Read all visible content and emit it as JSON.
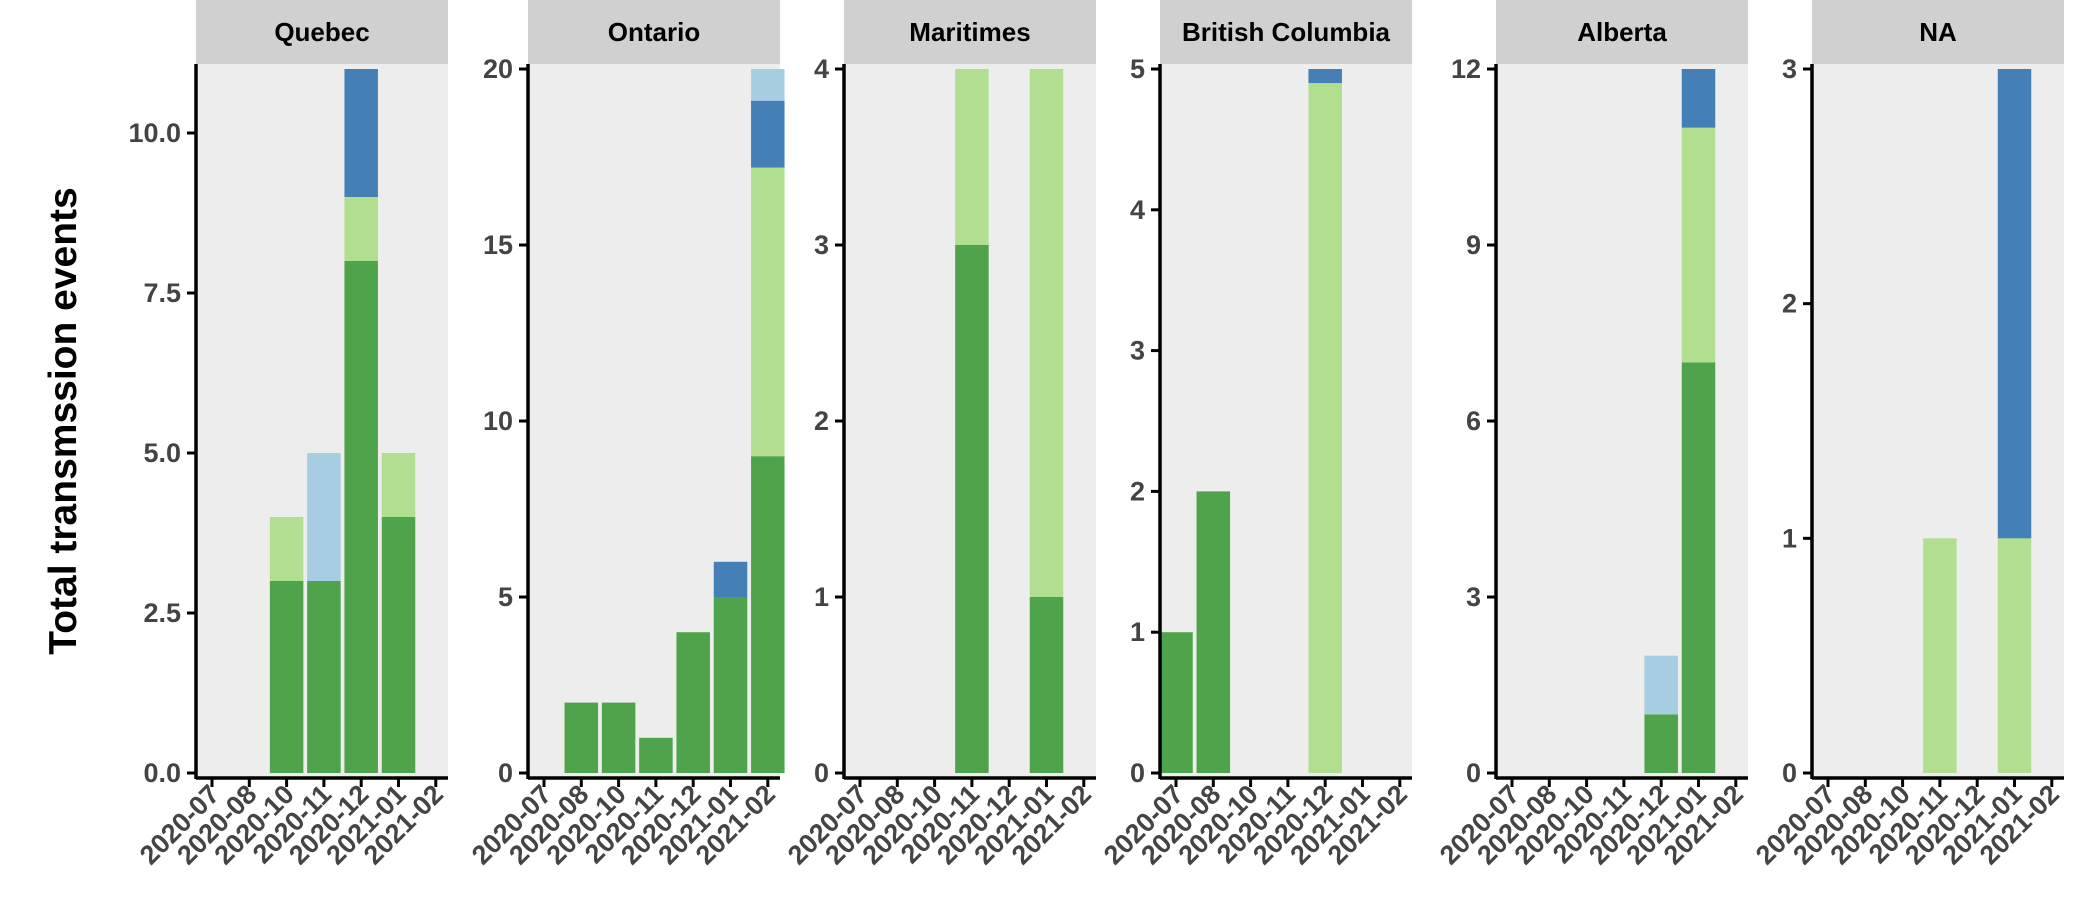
{
  "y_axis_title": "Total transmssion events",
  "colors": {
    "panel_bg": "#ededed",
    "strip_bg": "#d0d0d0",
    "axis": "#000000",
    "tick_text": "#444444",
    "title_text": "#000000"
  },
  "chart_data": [
    {
      "type": "bar",
      "facet": "Quebec",
      "x_tick_labels": [
        "2020-07",
        "2020-08",
        "2020-10",
        "2020-11",
        "2020-12",
        "2021-01",
        "2021-02"
      ],
      "y_tick_labels": [
        "0.0",
        "2.5",
        "5.0",
        "7.5",
        "10.0"
      ],
      "y_ticks": [
        0,
        2.5,
        5,
        7.5,
        10
      ],
      "ylim": [
        0,
        11
      ],
      "bars": [
        {
          "category": "2020-10",
          "segments": [
            {
              "value": 3,
              "color": "#4fa34b"
            },
            {
              "value": 1,
              "color": "#b1df8f"
            }
          ]
        },
        {
          "category": "2020-11",
          "segments": [
            {
              "value": 3,
              "color": "#4fa34b"
            },
            {
              "value": 2,
              "color": "#a7cde3"
            }
          ]
        },
        {
          "category": "2020-12",
          "segments": [
            {
              "value": 8,
              "color": "#4fa34b"
            },
            {
              "value": 1,
              "color": "#b1df8f"
            },
            {
              "value": 2,
              "color": "#4480b6"
            }
          ]
        },
        {
          "category": "2021-01",
          "segments": [
            {
              "value": 4,
              "color": "#4fa34b"
            },
            {
              "value": 1,
              "color": "#b1df8f"
            }
          ]
        }
      ]
    },
    {
      "type": "bar",
      "facet": "Ontario",
      "x_tick_labels": [
        "2020-07",
        "2020-08",
        "2020-10",
        "2020-11",
        "2020-12",
        "2021-01",
        "2021-02"
      ],
      "y_tick_labels": [
        "0",
        "5",
        "10",
        "15",
        "20"
      ],
      "y_ticks": [
        0,
        5,
        10,
        15,
        20
      ],
      "ylim": [
        0,
        20
      ],
      "bars": [
        {
          "category": "2020-08",
          "segments": [
            {
              "value": 2,
              "color": "#4fa34b"
            }
          ]
        },
        {
          "category": "2020-10",
          "segments": [
            {
              "value": 2,
              "color": "#4fa34b"
            }
          ]
        },
        {
          "category": "2020-11",
          "segments": [
            {
              "value": 1,
              "color": "#4fa34b"
            }
          ]
        },
        {
          "category": "2020-12",
          "segments": [
            {
              "value": 4,
              "color": "#4fa34b"
            }
          ]
        },
        {
          "category": "2021-01",
          "segments": [
            {
              "value": 5,
              "color": "#4fa34b"
            },
            {
              "value": 1,
              "color": "#4480b6"
            }
          ]
        },
        {
          "category": "2021-02",
          "segments": [
            {
              "value": 9,
              "color": "#4fa34b"
            },
            {
              "value": 8.2,
              "color": "#b1df8f"
            },
            {
              "value": 1.9,
              "color": "#4480b6"
            },
            {
              "value": 0.9,
              "color": "#a7cde3"
            }
          ]
        }
      ]
    },
    {
      "type": "bar",
      "facet": "Maritimes",
      "x_tick_labels": [
        "2020-07",
        "2020-08",
        "2020-10",
        "2020-11",
        "2020-12",
        "2021-01",
        "2021-02"
      ],
      "y_tick_labels": [
        "0",
        "1",
        "2",
        "3",
        "4"
      ],
      "y_ticks": [
        0,
        1,
        2,
        3,
        4
      ],
      "ylim": [
        0,
        4
      ],
      "bars": [
        {
          "category": "2020-11",
          "segments": [
            {
              "value": 3,
              "color": "#4fa34b"
            },
            {
              "value": 1,
              "color": "#b1df8f"
            }
          ]
        },
        {
          "category": "2021-01",
          "segments": [
            {
              "value": 1,
              "color": "#4fa34b"
            },
            {
              "value": 3,
              "color": "#b1df8f"
            }
          ]
        }
      ]
    },
    {
      "type": "bar",
      "facet": "British Columbia",
      "x_tick_labels": [
        "2020-07",
        "2020-08",
        "2020-10",
        "2020-11",
        "2020-12",
        "2021-01",
        "2021-02"
      ],
      "y_tick_labels": [
        "0",
        "1",
        "2",
        "3",
        "4",
        "5"
      ],
      "y_ticks": [
        0,
        1,
        2,
        3,
        4,
        5
      ],
      "ylim": [
        0,
        5
      ],
      "bars": [
        {
          "category": "2020-07",
          "segments": [
            {
              "value": 1,
              "color": "#4fa34b"
            }
          ]
        },
        {
          "category": "2020-08",
          "segments": [
            {
              "value": 2,
              "color": "#4fa34b"
            }
          ]
        },
        {
          "category": "2020-12",
          "segments": [
            {
              "value": 4.9,
              "color": "#b1df8f"
            },
            {
              "value": 0.1,
              "color": "#4480b6"
            }
          ]
        }
      ]
    },
    {
      "type": "bar",
      "facet": "Alberta",
      "x_tick_labels": [
        "2020-07",
        "2020-08",
        "2020-10",
        "2020-11",
        "2020-12",
        "2021-01",
        "2021-02"
      ],
      "y_tick_labels": [
        "0",
        "3",
        "6",
        "9",
        "12"
      ],
      "y_ticks": [
        0,
        3,
        6,
        9,
        12
      ],
      "ylim": [
        0,
        12
      ],
      "bars": [
        {
          "category": "2020-12",
          "segments": [
            {
              "value": 1,
              "color": "#4fa34b"
            },
            {
              "value": 1,
              "color": "#a7cde3"
            }
          ]
        },
        {
          "category": "2021-01",
          "segments": [
            {
              "value": 7,
              "color": "#4fa34b"
            },
            {
              "value": 4,
              "color": "#b1df8f"
            },
            {
              "value": 1,
              "color": "#4480b6"
            }
          ]
        }
      ]
    },
    {
      "type": "bar",
      "facet": "NA",
      "x_tick_labels": [
        "2020-07",
        "2020-08",
        "2020-10",
        "2020-11",
        "2020-12",
        "2021-01",
        "2021-02"
      ],
      "y_tick_labels": [
        "0",
        "1",
        "2",
        "3"
      ],
      "y_ticks": [
        0,
        1,
        2,
        3
      ],
      "ylim": [
        0,
        3
      ],
      "bars": [
        {
          "category": "2020-11",
          "segments": [
            {
              "value": 1,
              "color": "#b1df8f"
            }
          ]
        },
        {
          "category": "2021-01",
          "segments": [
            {
              "value": 1,
              "color": "#b1df8f"
            },
            {
              "value": 2,
              "color": "#4480b6"
            }
          ]
        }
      ]
    }
  ]
}
